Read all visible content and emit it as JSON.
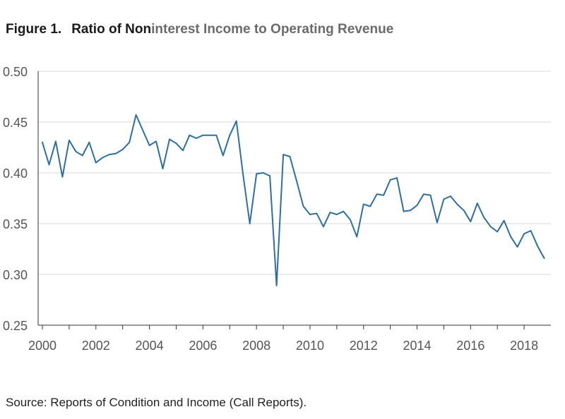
{
  "header": {
    "figure_label": "Figure 1.",
    "title_part1": "Ratio of Non",
    "title_part2": "interest Income to Operating Revenue"
  },
  "footer": {
    "source": "Source: Reports of Condition and Income (Call Reports)."
  },
  "colors": {
    "line": "#2e6f9e",
    "grid": "#d9d9d9",
    "axis": "#333333",
    "tick_text": "#555555"
  },
  "chart_data": {
    "type": "line",
    "title": "Ratio of Noninterest Income to Operating Revenue",
    "xlabel": "",
    "ylabel": "",
    "ylim": [
      0.25,
      0.5
    ],
    "xlim": [
      2000,
      2019
    ],
    "grid": "horizontal",
    "y_ticks": [
      "0.25",
      "0.30",
      "0.35",
      "0.40",
      "0.45",
      "0.50"
    ],
    "x_ticks": [
      "2000",
      "2002",
      "2004",
      "2006",
      "2008",
      "2010",
      "2012",
      "2014",
      "2016",
      "2018"
    ],
    "series": [
      {
        "x": [
          2000.0,
          2000.25,
          2000.5,
          2000.75,
          2001.0,
          2001.25,
          2001.5,
          2001.75,
          2002.0,
          2002.25,
          2002.5,
          2002.75,
          2003.0,
          2003.25,
          2003.5,
          2003.75,
          2004.0,
          2004.25,
          2004.5,
          2004.75,
          2005.0,
          2005.25,
          2005.5,
          2005.75,
          2006.0,
          2006.25,
          2006.5,
          2006.75,
          2007.0,
          2007.25,
          2007.5,
          2007.75,
          2008.0,
          2008.25,
          2008.5,
          2008.75,
          2009.0,
          2009.25,
          2009.5,
          2009.75,
          2010.0,
          2010.25,
          2010.5,
          2010.75,
          2011.0,
          2011.25,
          2011.5,
          2011.75,
          2012.0,
          2012.25,
          2012.5,
          2012.75,
          2013.0,
          2013.25,
          2013.5,
          2013.75,
          2014.0,
          2014.25,
          2014.5,
          2014.75,
          2015.0,
          2015.25,
          2015.5,
          2015.75,
          2016.0,
          2016.25,
          2016.5,
          2016.75,
          2017.0,
          2017.25,
          2017.5,
          2017.75,
          2018.0,
          2018.25,
          2018.5,
          2018.75
        ],
        "values": [
          0.43,
          0.408,
          0.431,
          0.396,
          0.432,
          0.421,
          0.417,
          0.43,
          0.41,
          0.415,
          0.418,
          0.419,
          0.423,
          0.43,
          0.457,
          0.442,
          0.427,
          0.431,
          0.404,
          0.433,
          0.429,
          0.422,
          0.437,
          0.434,
          0.437,
          0.437,
          0.437,
          0.417,
          0.437,
          0.451,
          0.398,
          0.35,
          0.399,
          0.4,
          0.397,
          0.289,
          0.418,
          0.416,
          0.392,
          0.367,
          0.359,
          0.36,
          0.347,
          0.361,
          0.359,
          0.362,
          0.354,
          0.337,
          0.369,
          0.367,
          0.379,
          0.378,
          0.393,
          0.395,
          0.362,
          0.363,
          0.368,
          0.379,
          0.378,
          0.351,
          0.374,
          0.377,
          0.369,
          0.363,
          0.352,
          0.37,
          0.356,
          0.347,
          0.342,
          0.353,
          0.337,
          0.327,
          0.34,
          0.343,
          0.328,
          0.316
        ]
      }
    ]
  }
}
